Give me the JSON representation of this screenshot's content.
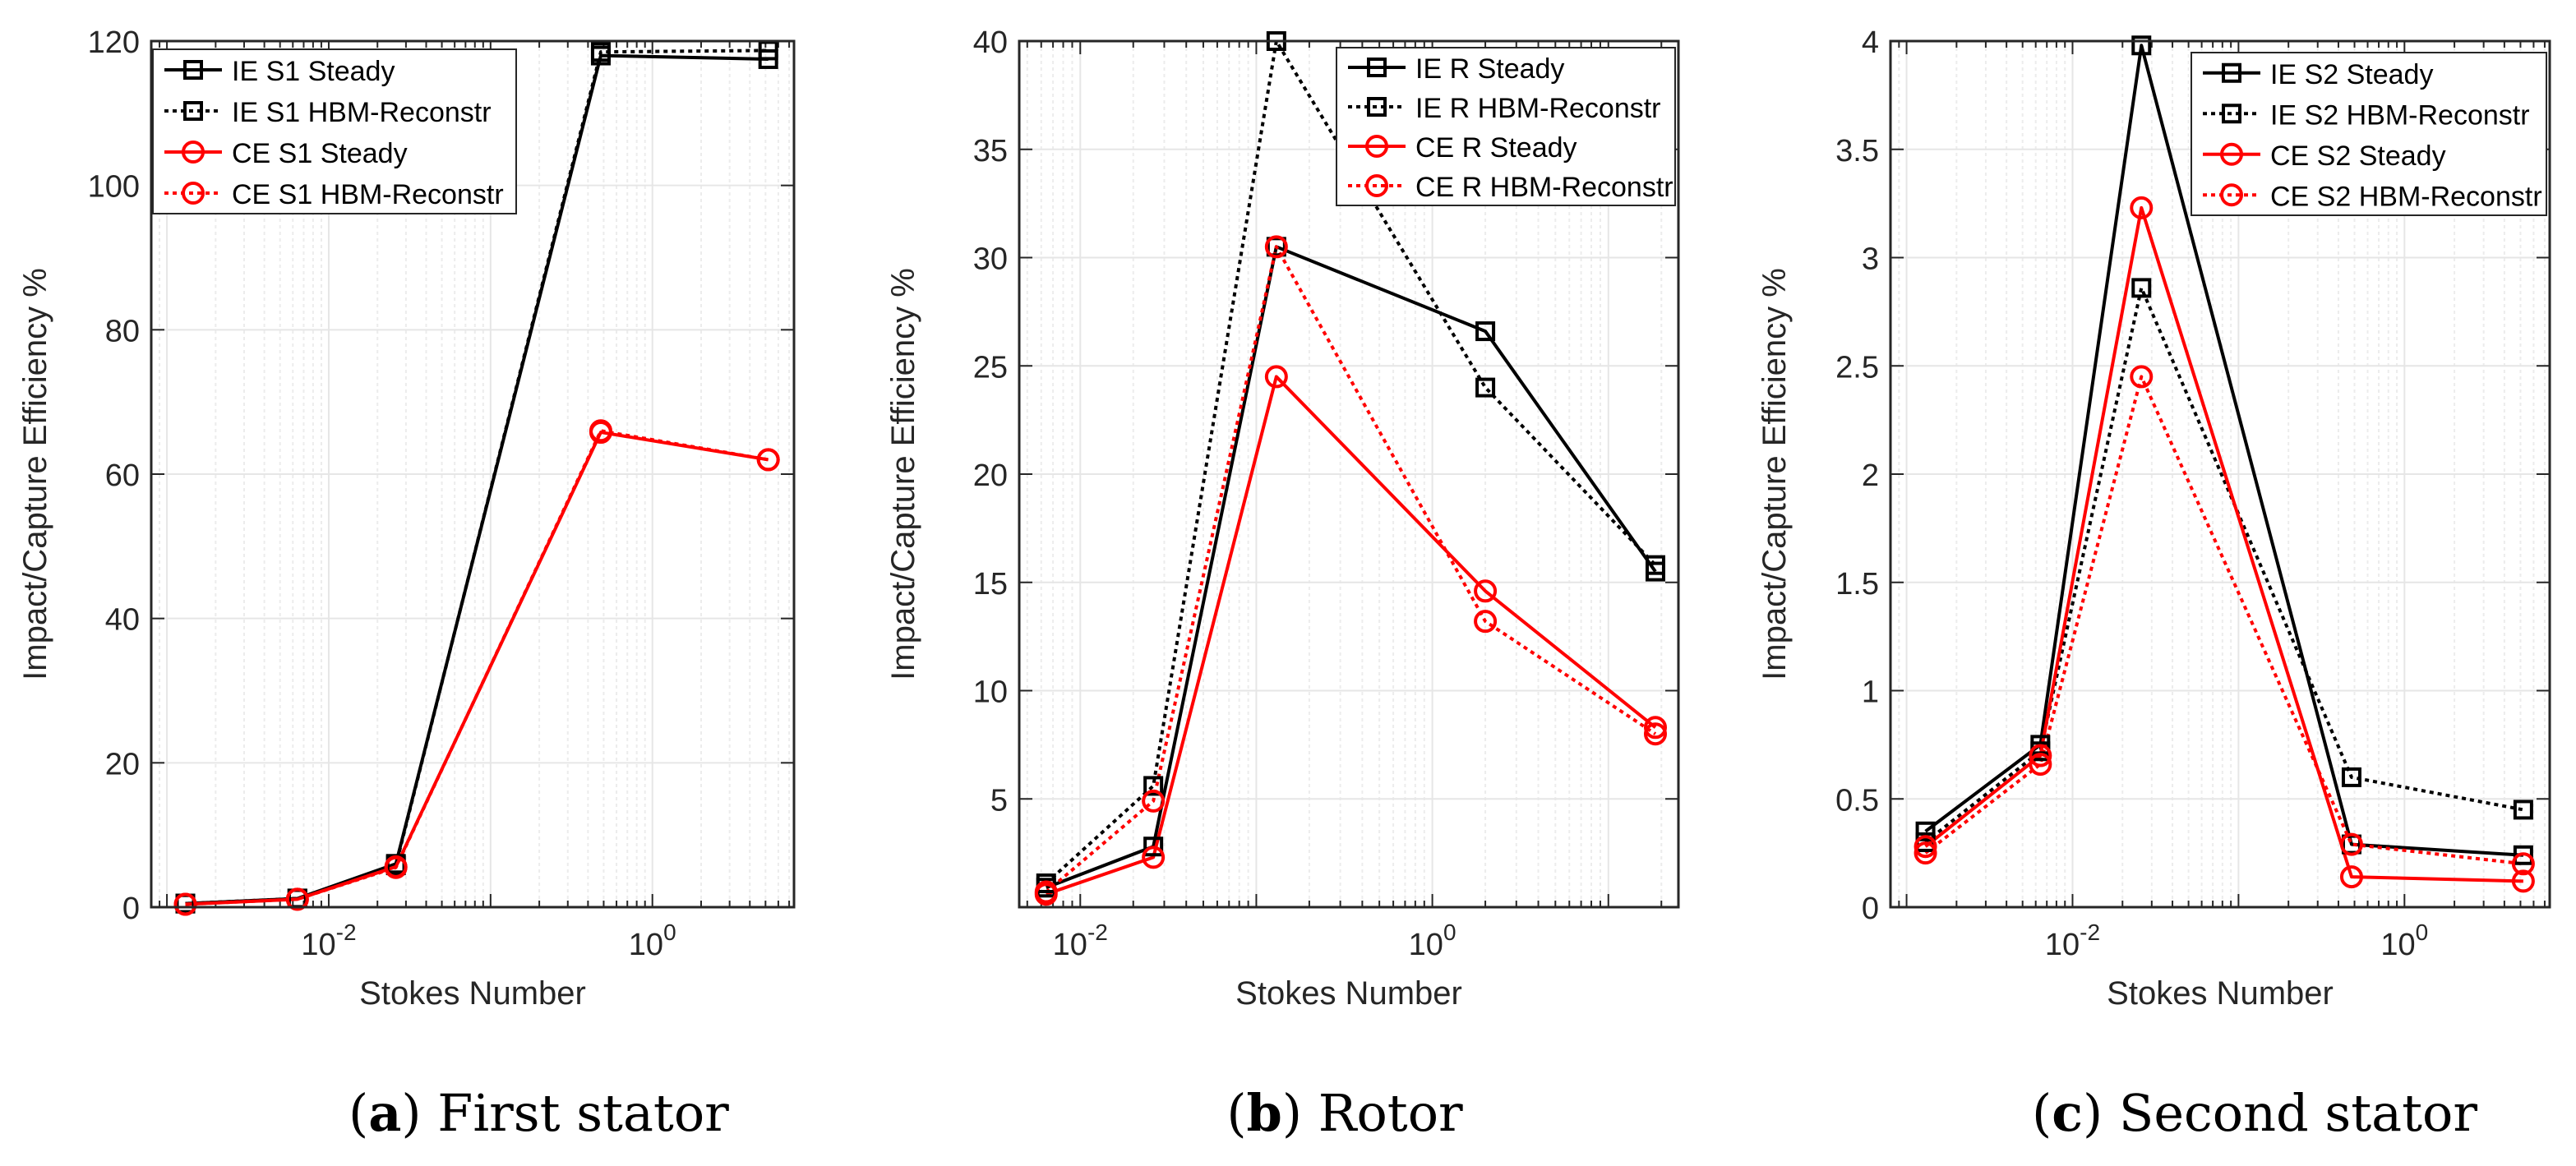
{
  "figure": {
    "captions": [
      {
        "letter": "a",
        "text": "First stator"
      },
      {
        "letter": "b",
        "text": "Rotor"
      },
      {
        "letter": "c",
        "text": "Second stator"
      }
    ]
  },
  "colors": {
    "ie": "#000000",
    "ce": "#ff0000",
    "grid": "#e6e6e6",
    "axis": "#262626"
  },
  "chart_data": [
    {
      "type": "line",
      "title": "First stator",
      "xlabel": "Stokes Number",
      "ylabel": "Impact/Capture Efficiency %",
      "xscale": "log",
      "xlim": [
        0.0008,
        7.5
      ],
      "ylim": [
        0,
        120
      ],
      "yticks": [
        0,
        20,
        40,
        60,
        80,
        100,
        120
      ],
      "yticklabels": [
        "0",
        "20",
        "40",
        "60",
        "80",
        "100",
        "120"
      ],
      "xticks": [
        {
          "value": 0.01,
          "base": "10",
          "exp": "-2"
        },
        {
          "value": 1,
          "base": "10",
          "exp": "0"
        }
      ],
      "legend": "top-left",
      "series": [
        {
          "name": "IE S1 Steady",
          "color": "#000000",
          "style": "solid",
          "marker": "square",
          "x": [
            0.0013,
            0.0064,
            0.026,
            0.48,
            5.2
          ],
          "y": [
            0.5,
            1.2,
            6.0,
            118.0,
            117.5
          ]
        },
        {
          "name": "IE S1 HBM-Reconstr",
          "color": "#000000",
          "style": "dotted",
          "marker": "square",
          "x": [
            0.0013,
            0.0064,
            0.026,
            0.48,
            5.2
          ],
          "y": [
            0.5,
            1.2,
            5.8,
            118.5,
            118.7
          ]
        },
        {
          "name": "CE S1 Steady",
          "color": "#ff0000",
          "style": "solid",
          "marker": "circle",
          "x": [
            0.0013,
            0.0064,
            0.026,
            0.48,
            5.2
          ],
          "y": [
            0.4,
            1.1,
            5.6,
            65.8,
            62.0
          ]
        },
        {
          "name": "CE S1 HBM-Reconstr",
          "color": "#ff0000",
          "style": "dotted",
          "marker": "circle",
          "x": [
            0.0013,
            0.0064,
            0.026,
            0.48,
            5.2
          ],
          "y": [
            0.4,
            1.1,
            5.5,
            66.0,
            62.0
          ]
        }
      ]
    },
    {
      "type": "line",
      "title": "Rotor",
      "xlabel": "Stokes Number",
      "ylabel": "Impact/Capture Efficiency %",
      "xscale": "log",
      "xlim": [
        0.0045,
        25
      ],
      "ylim": [
        0,
        40
      ],
      "yticks": [
        5,
        10,
        15,
        20,
        25,
        30,
        35,
        40
      ],
      "yticklabels": [
        "5",
        "10",
        "15",
        "20",
        "25",
        "30",
        "35",
        "40"
      ],
      "xticks": [
        {
          "value": 0.01,
          "base": "10",
          "exp": "-2"
        },
        {
          "value": 1,
          "base": "10",
          "exp": "0"
        }
      ],
      "legend": "top-right",
      "series": [
        {
          "name": "IE R Steady",
          "color": "#000000",
          "style": "solid",
          "marker": "square",
          "x": [
            0.0064,
            0.026,
            0.13,
            2.0,
            18.5
          ],
          "y": [
            0.9,
            2.8,
            30.5,
            26.6,
            15.5
          ]
        },
        {
          "name": "IE R HBM-Reconstr",
          "color": "#000000",
          "style": "dotted",
          "marker": "square",
          "x": [
            0.0064,
            0.026,
            0.13,
            2.0,
            18.5
          ],
          "y": [
            1.1,
            5.6,
            40.0,
            24.0,
            15.8
          ]
        },
        {
          "name": "CE R Steady",
          "color": "#ff0000",
          "style": "solid",
          "marker": "circle",
          "x": [
            0.0064,
            0.026,
            0.13,
            2.0,
            18.5
          ],
          "y": [
            0.6,
            2.3,
            24.5,
            14.6,
            8.3
          ]
        },
        {
          "name": "CE R HBM-Reconstr",
          "color": "#ff0000",
          "style": "dotted",
          "marker": "circle",
          "x": [
            0.0064,
            0.026,
            0.13,
            2.0,
            18.5
          ],
          "y": [
            0.7,
            4.9,
            30.5,
            13.2,
            8.0
          ]
        }
      ]
    },
    {
      "type": "line",
      "title": "Second stator",
      "xlabel": "Stokes Number",
      "ylabel": "Impact/Capture Efficiency %",
      "xscale": "log",
      "xlim": [
        0.0008,
        7.5
      ],
      "ylim": [
        0,
        4
      ],
      "yticks": [
        0,
        0.5,
        1,
        1.5,
        2,
        2.5,
        3,
        3.5,
        4
      ],
      "yticklabels": [
        "0",
        "0.5",
        "1",
        "1.5",
        "2",
        "2.5",
        "3",
        "3.5",
        "4"
      ],
      "xticks": [
        {
          "value": 0.01,
          "base": "10",
          "exp": "-2"
        },
        {
          "value": 1,
          "base": "10",
          "exp": "0"
        }
      ],
      "legend": "top-right",
      "series": [
        {
          "name": "IE S2 Steady",
          "color": "#000000",
          "style": "solid",
          "marker": "square",
          "x": [
            0.0013,
            0.0064,
            0.026,
            0.48,
            5.2
          ],
          "y": [
            0.35,
            0.75,
            3.98,
            0.29,
            0.24
          ]
        },
        {
          "name": "IE S2 HBM-Reconstr",
          "color": "#000000",
          "style": "dotted",
          "marker": "square",
          "x": [
            0.0013,
            0.0064,
            0.026,
            0.48,
            5.2
          ],
          "y": [
            0.3,
            0.72,
            2.86,
            0.6,
            0.45
          ]
        },
        {
          "name": "CE S2 Steady",
          "color": "#ff0000",
          "style": "solid",
          "marker": "circle",
          "x": [
            0.0013,
            0.0064,
            0.026,
            0.48,
            5.2
          ],
          "y": [
            0.28,
            0.7,
            3.23,
            0.14,
            0.12
          ]
        },
        {
          "name": "CE S2 HBM-Reconstr",
          "color": "#ff0000",
          "style": "dotted",
          "marker": "circle",
          "x": [
            0.0013,
            0.0064,
            0.026,
            0.48,
            5.2
          ],
          "y": [
            0.25,
            0.66,
            2.45,
            0.29,
            0.2
          ]
        }
      ]
    }
  ]
}
